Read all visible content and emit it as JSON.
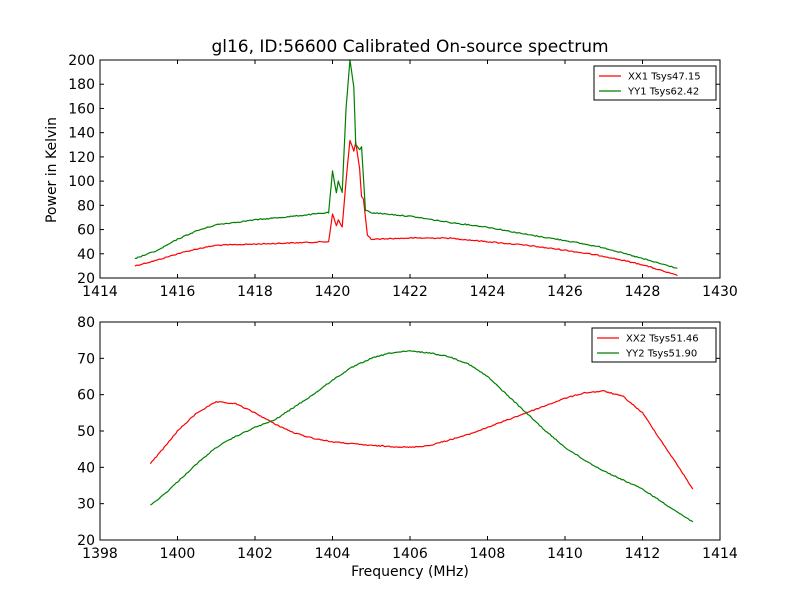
{
  "chart_data": [
    {
      "type": "line",
      "title": "gl16, ID:56600 Calibrated On-source spectrum",
      "xlabel": "",
      "ylabel": "Power in Kelvin",
      "xlim": [
        1414,
        1430
      ],
      "ylim": [
        20,
        200
      ],
      "xticks": [
        "1414",
        "1416",
        "1418",
        "1420",
        "1422",
        "1424",
        "1426",
        "1428",
        "1430"
      ],
      "yticks": [
        "20",
        "40",
        "60",
        "80",
        "100",
        "120",
        "140",
        "160",
        "180",
        "200"
      ],
      "legend_position": "top-right",
      "grid": false,
      "series": [
        {
          "name": "XX1 Tsys47.15",
          "color": "#ff0000",
          "points": [
            [
              1414.9,
              30
            ],
            [
              1415.5,
              35
            ],
            [
              1416,
              40
            ],
            [
              1416.5,
              44
            ],
            [
              1417,
              47
            ],
            [
              1418,
              48
            ],
            [
              1419,
              49
            ],
            [
              1419.9,
              50
            ],
            [
              1420.0,
              73
            ],
            [
              1420.1,
              63
            ],
            [
              1420.15,
              68
            ],
            [
              1420.25,
              62
            ],
            [
              1420.35,
              100
            ],
            [
              1420.45,
              134
            ],
            [
              1420.55,
              125
            ],
            [
              1420.6,
              132
            ],
            [
              1420.7,
              110
            ],
            [
              1420.75,
              87
            ],
            [
              1420.8,
              85
            ],
            [
              1420.9,
              55
            ],
            [
              1421,
              52
            ],
            [
              1422,
              53
            ],
            [
              1423,
              53
            ],
            [
              1424,
              50
            ],
            [
              1425,
              47
            ],
            [
              1426,
              43
            ],
            [
              1427,
              38
            ],
            [
              1428,
              31
            ],
            [
              1428.9,
              22
            ]
          ]
        },
        {
          "name": "YY1 Tsys62.42",
          "color": "#008000",
          "points": [
            [
              1414.9,
              36
            ],
            [
              1415.5,
              43
            ],
            [
              1416,
              52
            ],
            [
              1416.5,
              59
            ],
            [
              1417,
              64
            ],
            [
              1418,
              68
            ],
            [
              1419,
              71
            ],
            [
              1419.9,
              74
            ],
            [
              1420.0,
              108
            ],
            [
              1420.1,
              90
            ],
            [
              1420.15,
              100
            ],
            [
              1420.25,
              91
            ],
            [
              1420.35,
              160
            ],
            [
              1420.45,
              200
            ],
            [
              1420.55,
              178
            ],
            [
              1420.6,
              130
            ],
            [
              1420.7,
              126
            ],
            [
              1420.75,
              128
            ],
            [
              1420.85,
              76
            ],
            [
              1421,
              74
            ],
            [
              1422,
              71
            ],
            [
              1423,
              66
            ],
            [
              1424,
              62
            ],
            [
              1425,
              56
            ],
            [
              1426,
              51
            ],
            [
              1427,
              45
            ],
            [
              1428,
              36
            ],
            [
              1428.9,
              28
            ]
          ]
        }
      ]
    },
    {
      "type": "line",
      "title": "",
      "xlabel": "Frequency (MHz)",
      "ylabel": "",
      "xlim": [
        1398,
        1414
      ],
      "ylim": [
        20,
        80
      ],
      "xticks": [
        "1398",
        "1400",
        "1402",
        "1404",
        "1406",
        "1408",
        "1410",
        "1412",
        "1414"
      ],
      "yticks": [
        "20",
        "30",
        "40",
        "50",
        "60",
        "70",
        "80"
      ],
      "legend_position": "top-right",
      "grid": false,
      "series": [
        {
          "name": "XX2 Tsys51.46",
          "color": "#ff0000",
          "points": [
            [
              1399.3,
              41
            ],
            [
              1399.7,
              46
            ],
            [
              1400.0,
              50
            ],
            [
              1400.5,
              55
            ],
            [
              1401.0,
              58
            ],
            [
              1401.5,
              57.5
            ],
            [
              1402.0,
              55
            ],
            [
              1402.5,
              52
            ],
            [
              1403.0,
              49.5
            ],
            [
              1403.5,
              48
            ],
            [
              1404.0,
              47
            ],
            [
              1405.0,
              46
            ],
            [
              1406.0,
              45.5
            ],
            [
              1406.5,
              46
            ],
            [
              1407.0,
              47.5
            ],
            [
              1407.5,
              49
            ],
            [
              1408.0,
              51
            ],
            [
              1408.5,
              53
            ],
            [
              1409.0,
              55
            ],
            [
              1409.5,
              57
            ],
            [
              1410.0,
              59
            ],
            [
              1410.5,
              60.5
            ],
            [
              1411.0,
              61
            ],
            [
              1411.5,
              59.5
            ],
            [
              1412.0,
              55
            ],
            [
              1412.5,
              47
            ],
            [
              1413.0,
              39
            ],
            [
              1413.3,
              34
            ]
          ]
        },
        {
          "name": "YY2 Tsys51.90",
          "color": "#008000",
          "points": [
            [
              1399.3,
              29.5
            ],
            [
              1399.7,
              33
            ],
            [
              1400.0,
              36
            ],
            [
              1400.5,
              41
            ],
            [
              1401.0,
              45.5
            ],
            [
              1401.5,
              48.5
            ],
            [
              1402.0,
              51
            ],
            [
              1402.5,
              53
            ],
            [
              1403.0,
              56.5
            ],
            [
              1403.5,
              60
            ],
            [
              1404.0,
              64
            ],
            [
              1404.5,
              67.5
            ],
            [
              1405.0,
              70
            ],
            [
              1405.5,
              71.5
            ],
            [
              1406.0,
              72
            ],
            [
              1406.5,
              71.5
            ],
            [
              1407.0,
              70.5
            ],
            [
              1407.5,
              68.5
            ],
            [
              1408.0,
              65
            ],
            [
              1408.5,
              60
            ],
            [
              1409.0,
              55
            ],
            [
              1409.5,
              50
            ],
            [
              1410.0,
              45.5
            ],
            [
              1410.5,
              42
            ],
            [
              1411.0,
              39
            ],
            [
              1411.5,
              36.5
            ],
            [
              1412.0,
              34
            ],
            [
              1412.5,
              30.5
            ],
            [
              1413.0,
              27
            ],
            [
              1413.3,
              25
            ]
          ]
        }
      ]
    }
  ]
}
